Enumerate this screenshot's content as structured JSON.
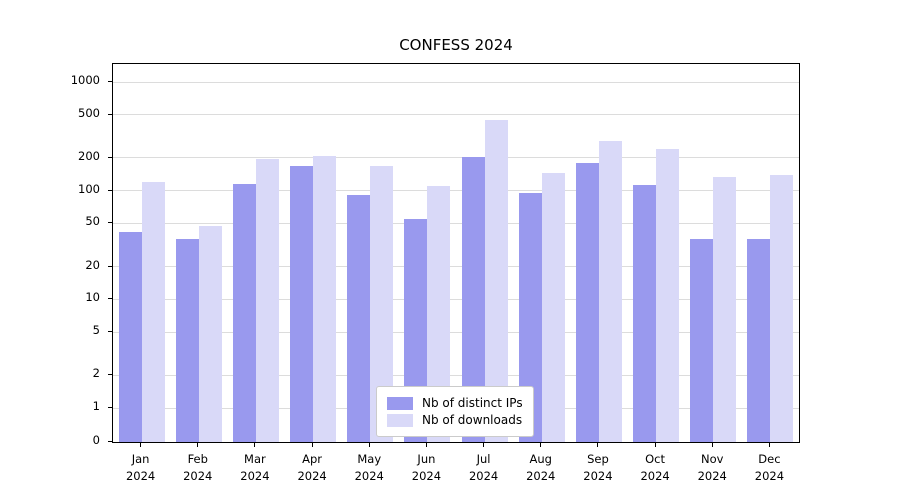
{
  "chart_data": {
    "type": "bar",
    "title": "CONFESS 2024",
    "categories": [
      "Jan 2024",
      "Feb 2024",
      "Mar 2024",
      "Apr 2024",
      "May 2024",
      "Jun 2024",
      "Jul 2024",
      "Aug 2024",
      "Sep 2024",
      "Oct 2024",
      "Nov 2024",
      "Dec 2024"
    ],
    "series": [
      {
        "name": "Nb of distinct IPs",
        "color": "#9999ee",
        "values": [
          42,
          36,
          115,
          170,
          92,
          55,
          205,
          95,
          180,
          112,
          36,
          36
        ]
      },
      {
        "name": "Nb of downloads",
        "color": "#d9d9f8",
        "values": [
          120,
          47,
          195,
          210,
          170,
          110,
          450,
          145,
          285,
          240,
          135,
          138
        ]
      }
    ],
    "yticks": [
      0,
      1,
      2,
      5,
      10,
      20,
      50,
      100,
      200,
      500,
      1000
    ],
    "ylim": [
      0,
      1000
    ],
    "scale": "symlog",
    "xlabel": "",
    "ylabel": "",
    "grid": "horizontal",
    "legend_position": "lower center"
  }
}
